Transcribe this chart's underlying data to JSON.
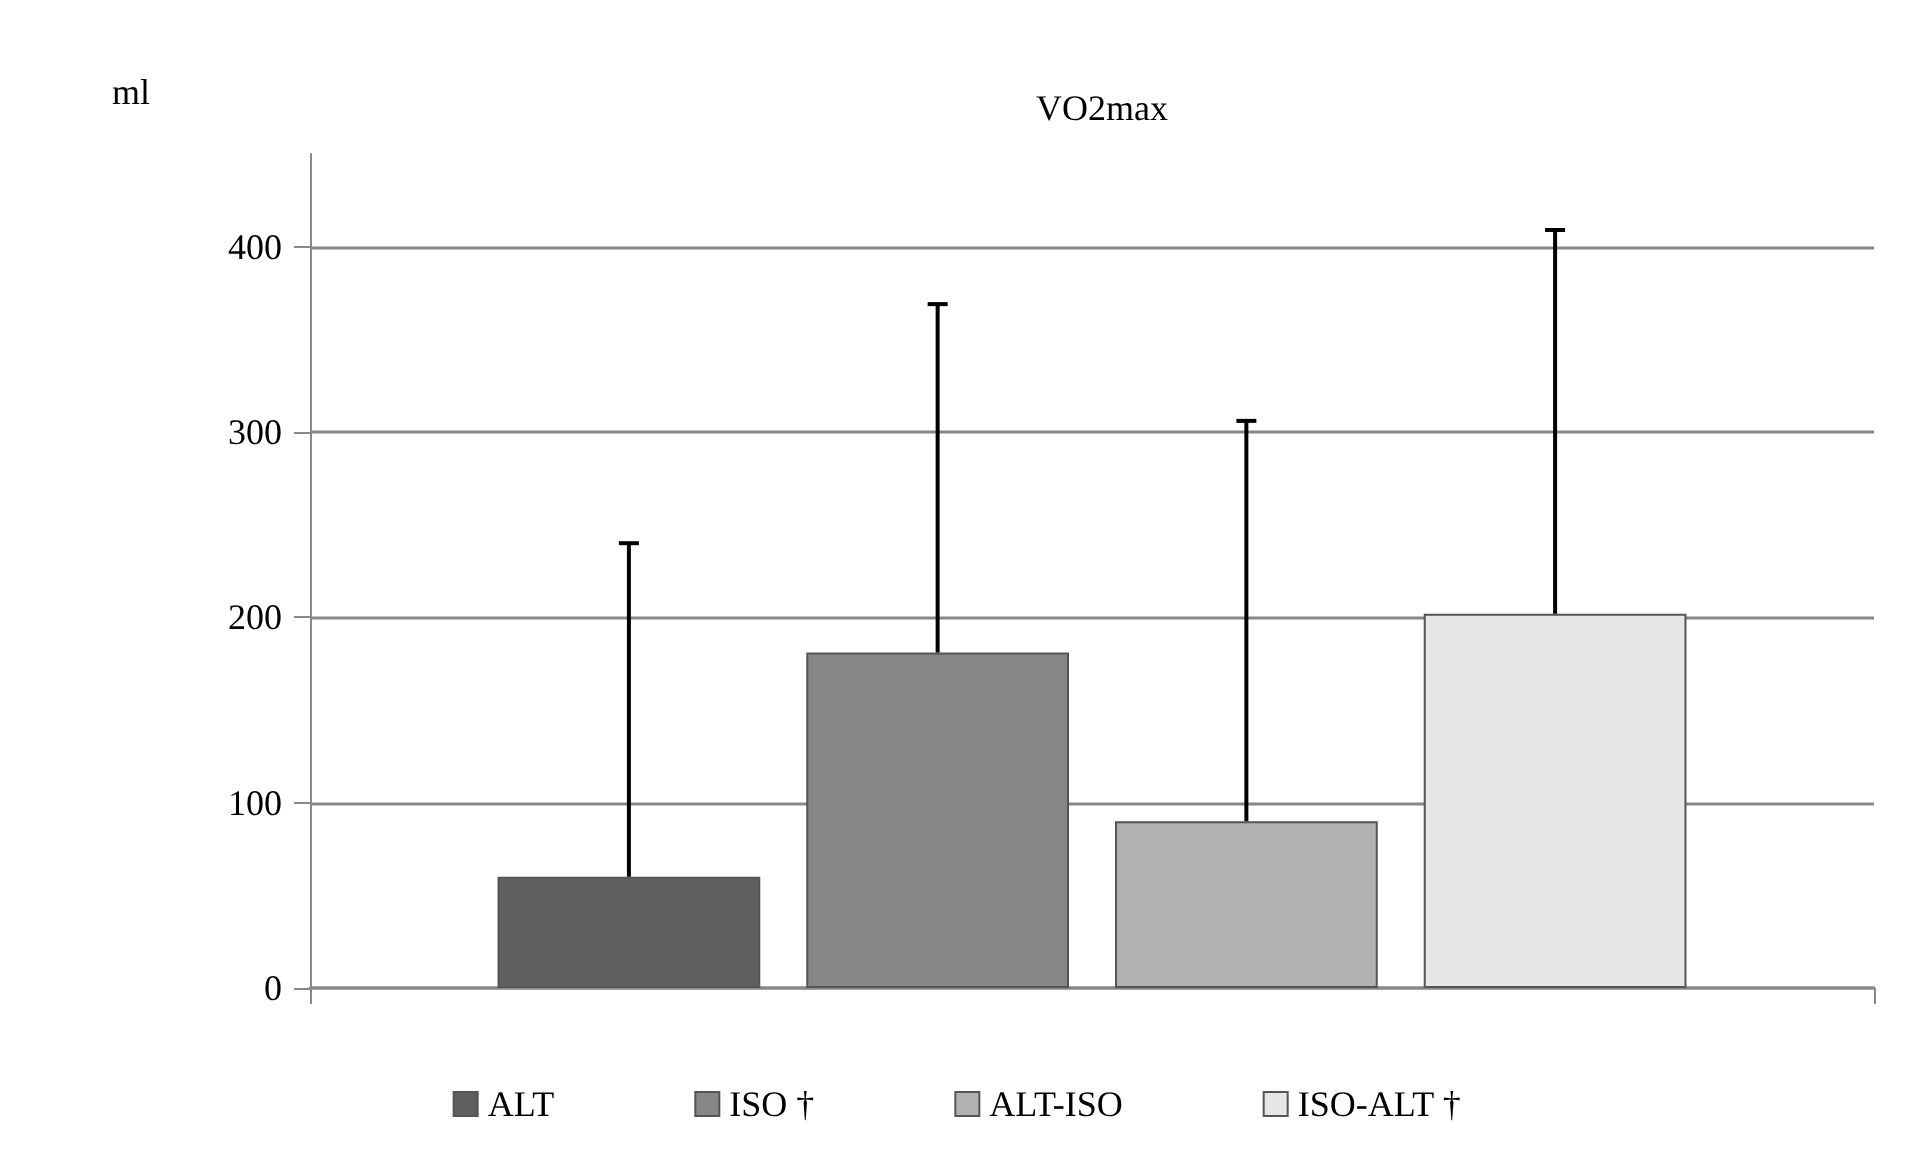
{
  "chart_data": {
    "type": "bar",
    "title": "VO2max",
    "ylabel": "ml",
    "categories": [
      null
    ],
    "series": [
      {
        "name": "ALT",
        "color": "#5f5f5f",
        "values": [
          60
        ],
        "errors": [
          [
            60,
            240
          ]
        ]
      },
      {
        "name": "ISO †",
        "color": "#878787",
        "values": [
          181
        ],
        "errors": [
          [
            181,
            369
          ]
        ]
      },
      {
        "name": "ALT-ISO",
        "color": "#b1b1b1",
        "values": [
          90
        ],
        "errors": [
          [
            90,
            306
          ]
        ]
      },
      {
        "name": "ISO-ALT †",
        "color": "#e6e6e6",
        "values": [
          202
        ],
        "errors": [
          [
            202,
            409
          ]
        ]
      }
    ],
    "ylim": [
      0,
      450
    ],
    "yticks": [
      0,
      100,
      200,
      300,
      400
    ],
    "grid": "y",
    "legend": "bottom"
  }
}
